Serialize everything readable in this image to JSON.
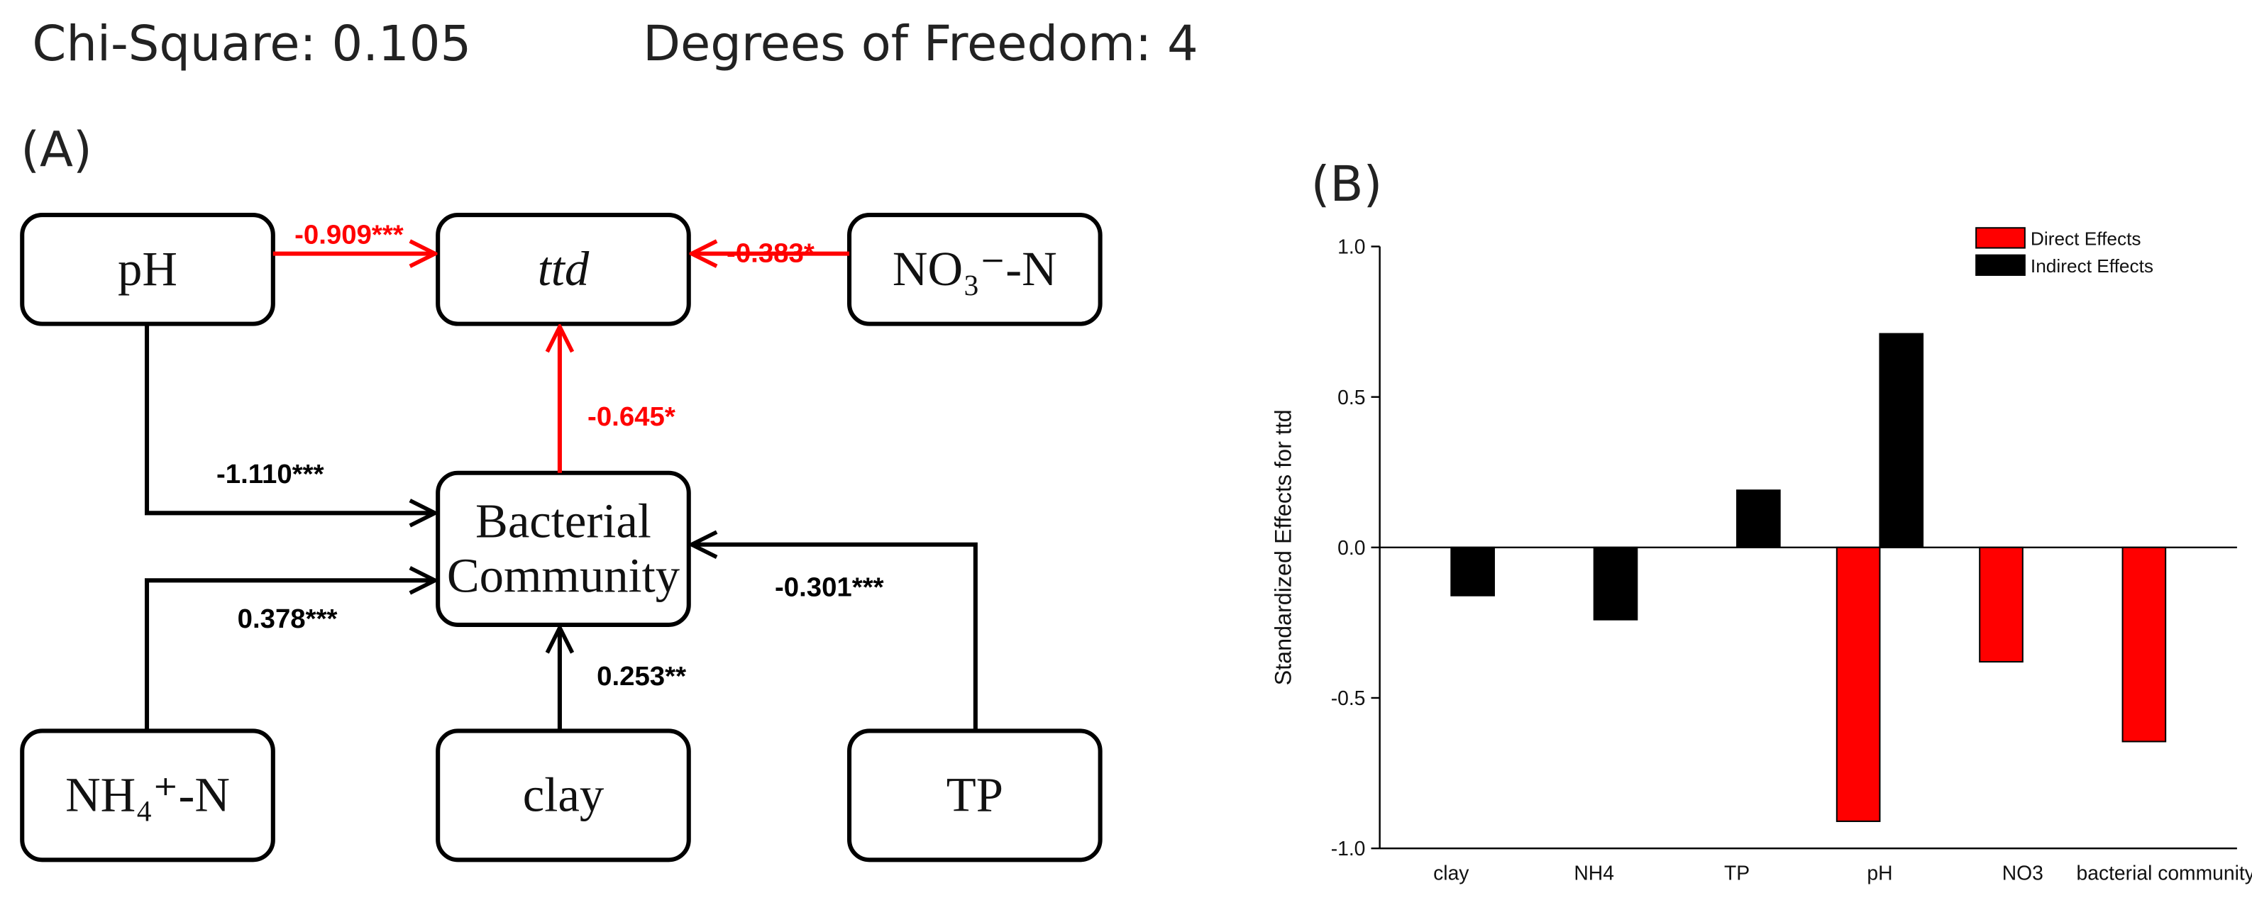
{
  "header": {
    "chi_square": "Chi-Square: 0.105",
    "degrees_of_freedom": "Degrees of Freedom: 4"
  },
  "panels": [
    "(A)",
    "(B)"
  ],
  "diagram": {
    "nodes": [
      {
        "lines": [
          "pH"
        ]
      },
      {
        "lines": [
          "ttd"
        ],
        "italic": true
      },
      {
        "lines": [
          "NO₃⁻-N"
        ]
      },
      {
        "lines": [
          "Bacterial",
          "Community"
        ]
      },
      {
        "lines": [
          "NH₄⁺-N"
        ]
      },
      {
        "lines": [
          "clay"
        ]
      },
      {
        "lines": [
          "TP"
        ]
      }
    ],
    "edges": [
      {
        "from": 0,
        "to": 1,
        "label": "-0.909***",
        "color": "#ff0000"
      },
      {
        "from": 2,
        "to": 1,
        "label": "-0.383*",
        "color": "#ff0000"
      },
      {
        "from": 3,
        "to": 1,
        "label": "-0.645*",
        "color": "#ff0000"
      },
      {
        "from": 0,
        "to": 3,
        "label": "-1.110***",
        "color": "#000000"
      },
      {
        "from": 4,
        "to": 3,
        "label": "0.378***",
        "color": "#000000"
      },
      {
        "from": 5,
        "to": 3,
        "label": "0.253**",
        "color": "#000000"
      },
      {
        "from": 6,
        "to": 3,
        "label": "-0.301***",
        "color": "#000000"
      }
    ]
  },
  "chart_data": {
    "type": "bar",
    "y_label": "Standardized Effects for ttd",
    "categories": [
      "clay",
      "NH4",
      "TP",
      "pH",
      "NO3",
      "bacterial community"
    ],
    "series": [
      {
        "name": "Direct Effects",
        "color": "#ff0000",
        "values": [
          null,
          null,
          null,
          -0.91,
          -0.38,
          -0.645
        ]
      },
      {
        "name": "Indirect Effects",
        "color": "#000000",
        "values": [
          -0.16,
          -0.24,
          0.19,
          0.71,
          null,
          null
        ]
      }
    ],
    "ylim": [
      -1,
      1
    ],
    "yticks": [
      {
        "value": -1,
        "label": "-1.0"
      },
      {
        "value": -0.5,
        "label": "-0.5"
      },
      {
        "value": 0,
        "label": "0.0"
      },
      {
        "value": 0.5,
        "label": "0.5"
      },
      {
        "value": 1,
        "label": "1.0"
      }
    ],
    "legend": "upper right"
  }
}
